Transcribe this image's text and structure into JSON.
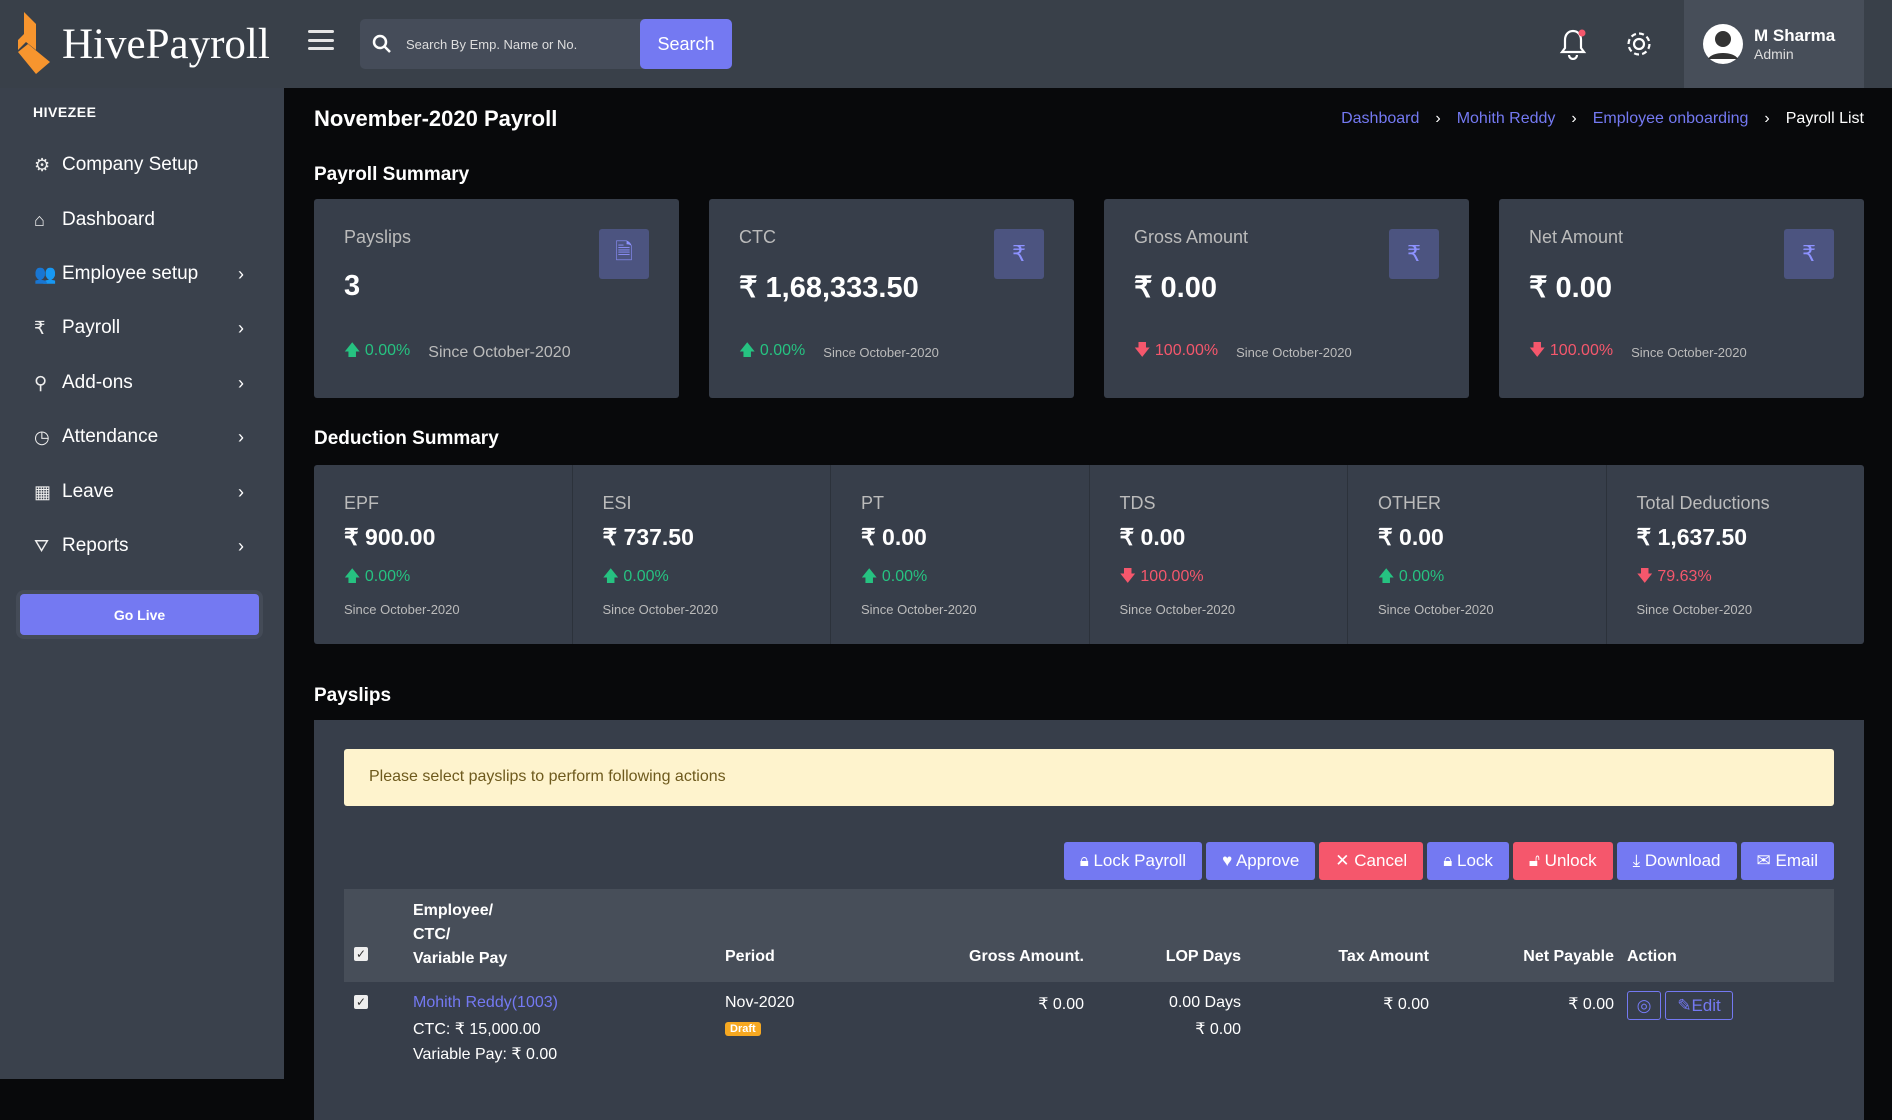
{
  "header": {
    "brand": "HivePayroll",
    "search_placeholder": "Search By Emp. Name or No.",
    "search_button": "Search",
    "user_name": "M Sharma",
    "user_role": "Admin"
  },
  "sidebar": {
    "org": "HIVEZEE",
    "items": [
      {
        "label": "Company Setup",
        "icon": "gear-icon",
        "sub": false
      },
      {
        "label": "Dashboard",
        "icon": "home-icon",
        "sub": false
      },
      {
        "label": "Employee setup",
        "icon": "users-icon",
        "sub": true
      },
      {
        "label": "Payroll",
        "icon": "rupee-icon",
        "sub": true
      },
      {
        "label": "Add-ons",
        "icon": "addons-icon",
        "sub": true
      },
      {
        "label": "Attendance",
        "icon": "clock-icon",
        "sub": true
      },
      {
        "label": "Leave",
        "icon": "calendar-icon",
        "sub": true
      },
      {
        "label": "Reports",
        "icon": "filter-icon",
        "sub": true
      }
    ],
    "go_live": "Go Live"
  },
  "page": {
    "title": "November-2020 Payroll",
    "breadcrumb": [
      "Dashboard",
      "Mohith Reddy",
      "Employee onboarding",
      "Payroll List"
    ]
  },
  "summary": {
    "heading": "Payroll Summary",
    "cards": [
      {
        "label": "Payslips",
        "value": "3",
        "change": "0.00%",
        "dir": "up",
        "since": "Since October-2020",
        "icon": "document-icon"
      },
      {
        "label": "CTC",
        "value": "₹ 1,68,333.50",
        "change": "0.00%",
        "dir": "up",
        "since": "Since October-2020",
        "icon": "rupee-icon"
      },
      {
        "label": "Gross Amount",
        "value": "₹ 0.00",
        "change": "100.00%",
        "dir": "down",
        "since": "Since October-2020",
        "icon": "rupee-icon"
      },
      {
        "label": "Net Amount",
        "value": "₹ 0.00",
        "change": "100.00%",
        "dir": "down",
        "since": "Since October-2020",
        "icon": "rupee-icon"
      }
    ]
  },
  "deductions": {
    "heading": "Deduction Summary",
    "items": [
      {
        "label": "EPF",
        "value": "₹ 900.00",
        "change": "0.00%",
        "dir": "up",
        "since": "Since October-2020"
      },
      {
        "label": "ESI",
        "value": "₹ 737.50",
        "change": "0.00%",
        "dir": "up",
        "since": "Since October-2020"
      },
      {
        "label": "PT",
        "value": "₹ 0.00",
        "change": "0.00%",
        "dir": "up",
        "since": "Since October-2020"
      },
      {
        "label": "TDS",
        "value": "₹ 0.00",
        "change": "100.00%",
        "dir": "down",
        "since": "Since October-2020"
      },
      {
        "label": "OTHER",
        "value": "₹ 0.00",
        "change": "0.00%",
        "dir": "up",
        "since": "Since October-2020"
      },
      {
        "label": "Total Deductions",
        "value": "₹ 1,637.50",
        "change": "79.63%",
        "dir": "down",
        "since": "Since October-2020"
      }
    ]
  },
  "payslips": {
    "heading": "Payslips",
    "alert": "Please select payslips to perform following actions",
    "actions": [
      {
        "label": "Lock Payroll",
        "icon": "lock-icon",
        "color": "#7479f2"
      },
      {
        "label": "Approve",
        "icon": "heart-icon",
        "color": "#7479f2"
      },
      {
        "label": "Cancel",
        "icon": "x-icon",
        "color": "#f5576c"
      },
      {
        "label": "Lock",
        "icon": "lock-icon",
        "color": "#7479f2"
      },
      {
        "label": "Unlock",
        "icon": "unlock-icon",
        "color": "#f5576c"
      },
      {
        "label": "Download",
        "icon": "download-icon",
        "color": "#7479f2"
      },
      {
        "label": "Email",
        "icon": "mail-icon",
        "color": "#7479f2"
      }
    ],
    "columns": {
      "employee": [
        "Employee/",
        "CTC/",
        "Variable Pay"
      ],
      "period": "Period",
      "gross": "Gross Amount.",
      "lop": "LOP Days",
      "tax": "Tax Amount",
      "net": "Net Payable",
      "action": "Action"
    },
    "rows": [
      {
        "name": "Mohith Reddy(1003)",
        "ctc": "CTC:  ₹ 15,000.00",
        "variable": "Variable Pay:  ₹ 0.00",
        "period": "Nov-2020",
        "status": "Draft",
        "gross": "₹ 0.00",
        "lop_days": "0.00 Days",
        "lop_amount": "₹ 0.00",
        "tax": "₹ 0.00",
        "net": "₹ 0.00",
        "edit": "Edit",
        "checked": true
      }
    ]
  }
}
